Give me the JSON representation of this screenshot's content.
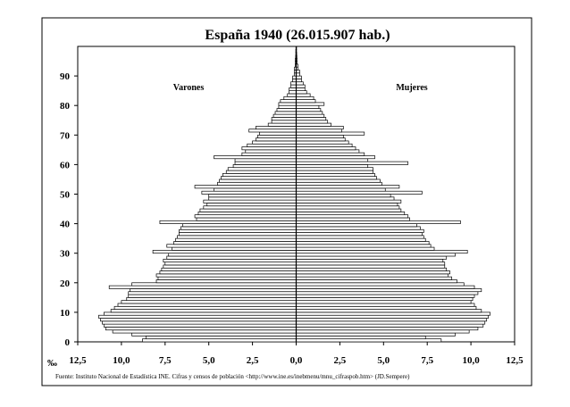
{
  "chart_data": {
    "type": "bar",
    "subtype": "population-pyramid",
    "title": "España 1940 (26.015.907 hab.)",
    "unit_label": "‰",
    "source": "Fuente: Instituto Nacional de Estadística INE. Cifras y censos de población <http://www.ine.es/inebmenu/mnu_cifraspob.htm> (JD.Sempere)",
    "x_ticks": [
      "12,5",
      "10,0",
      "7,5",
      "5,0",
      "2,5",
      "0,0",
      "2,5",
      "5,0",
      "7,5",
      "10,0",
      "12,5"
    ],
    "y_ticks": [
      "0",
      "10",
      "20",
      "30",
      "40",
      "50",
      "60",
      "70",
      "80",
      "90"
    ],
    "xlim": [
      -12.5,
      12.5
    ],
    "ylim": [
      0,
      100
    ],
    "grid": false,
    "legend": "none",
    "series": [
      {
        "name": "Varones",
        "color": "#ffffff",
        "values": [
          8.8,
          8.6,
          9.4,
          10.5,
          10.9,
          11.0,
          11.1,
          11.2,
          11.3,
          11.0,
          10.6,
          10.4,
          10.2,
          10.0,
          9.7,
          9.6,
          9.6,
          9.5,
          10.7,
          9.4,
          8.0,
          7.9,
          8.0,
          7.8,
          7.7,
          7.6,
          7.5,
          7.6,
          7.4,
          7.3,
          8.2,
          7.1,
          7.4,
          7.0,
          6.9,
          6.8,
          6.7,
          6.7,
          6.6,
          6.5,
          7.8,
          5.7,
          5.8,
          5.6,
          5.5,
          5.3,
          5.1,
          5.3,
          5.0,
          5.0,
          5.4,
          4.7,
          5.8,
          4.5,
          4.4,
          4.3,
          4.2,
          4.0,
          3.9,
          3.6,
          3.5,
          3.5,
          4.7,
          3.1,
          2.9,
          3.1,
          2.8,
          2.5,
          2.3,
          2.2,
          2.1,
          2.7,
          2.3,
          1.6,
          1.4,
          1.4,
          1.3,
          1.2,
          1.1,
          1.0,
          1.0,
          0.9,
          0.7,
          0.5,
          0.4,
          0.4,
          0.3,
          0.3,
          0.2,
          0.2,
          0.1,
          0.1,
          0.1,
          0.05,
          0.05,
          0.05,
          0.03,
          0.02,
          0.02,
          0.01
        ],
        "side": "left"
      },
      {
        "name": "Mujeres",
        "color": "#ffffff",
        "values": [
          8.3,
          7.4,
          9.1,
          9.9,
          10.4,
          10.7,
          10.8,
          10.9,
          11.0,
          11.1,
          10.6,
          10.3,
          10.2,
          10.0,
          10.1,
          10.2,
          10.4,
          10.6,
          10.2,
          9.6,
          9.2,
          8.9,
          8.7,
          8.8,
          8.6,
          8.5,
          8.5,
          8.4,
          8.6,
          9.1,
          9.8,
          7.9,
          7.7,
          7.6,
          7.4,
          7.3,
          7.2,
          7.3,
          7.1,
          6.9,
          9.4,
          6.5,
          6.4,
          6.2,
          6.0,
          5.9,
          5.8,
          6.0,
          5.6,
          5.4,
          7.2,
          5.1,
          5.9,
          4.9,
          4.8,
          4.6,
          4.5,
          4.4,
          4.4,
          4.1,
          6.4,
          4.1,
          4.5,
          3.9,
          3.6,
          3.4,
          3.2,
          3.0,
          2.8,
          2.7,
          3.9,
          2.6,
          2.7,
          2.0,
          1.8,
          1.7,
          1.6,
          1.5,
          1.4,
          1.3,
          1.6,
          1.1,
          1.0,
          0.8,
          0.6,
          0.5,
          0.5,
          0.4,
          0.3,
          0.3,
          0.2,
          0.2,
          0.1,
          0.1,
          0.05,
          0.05,
          0.04,
          0.03,
          0.02,
          0.02
        ],
        "side": "right"
      }
    ]
  }
}
